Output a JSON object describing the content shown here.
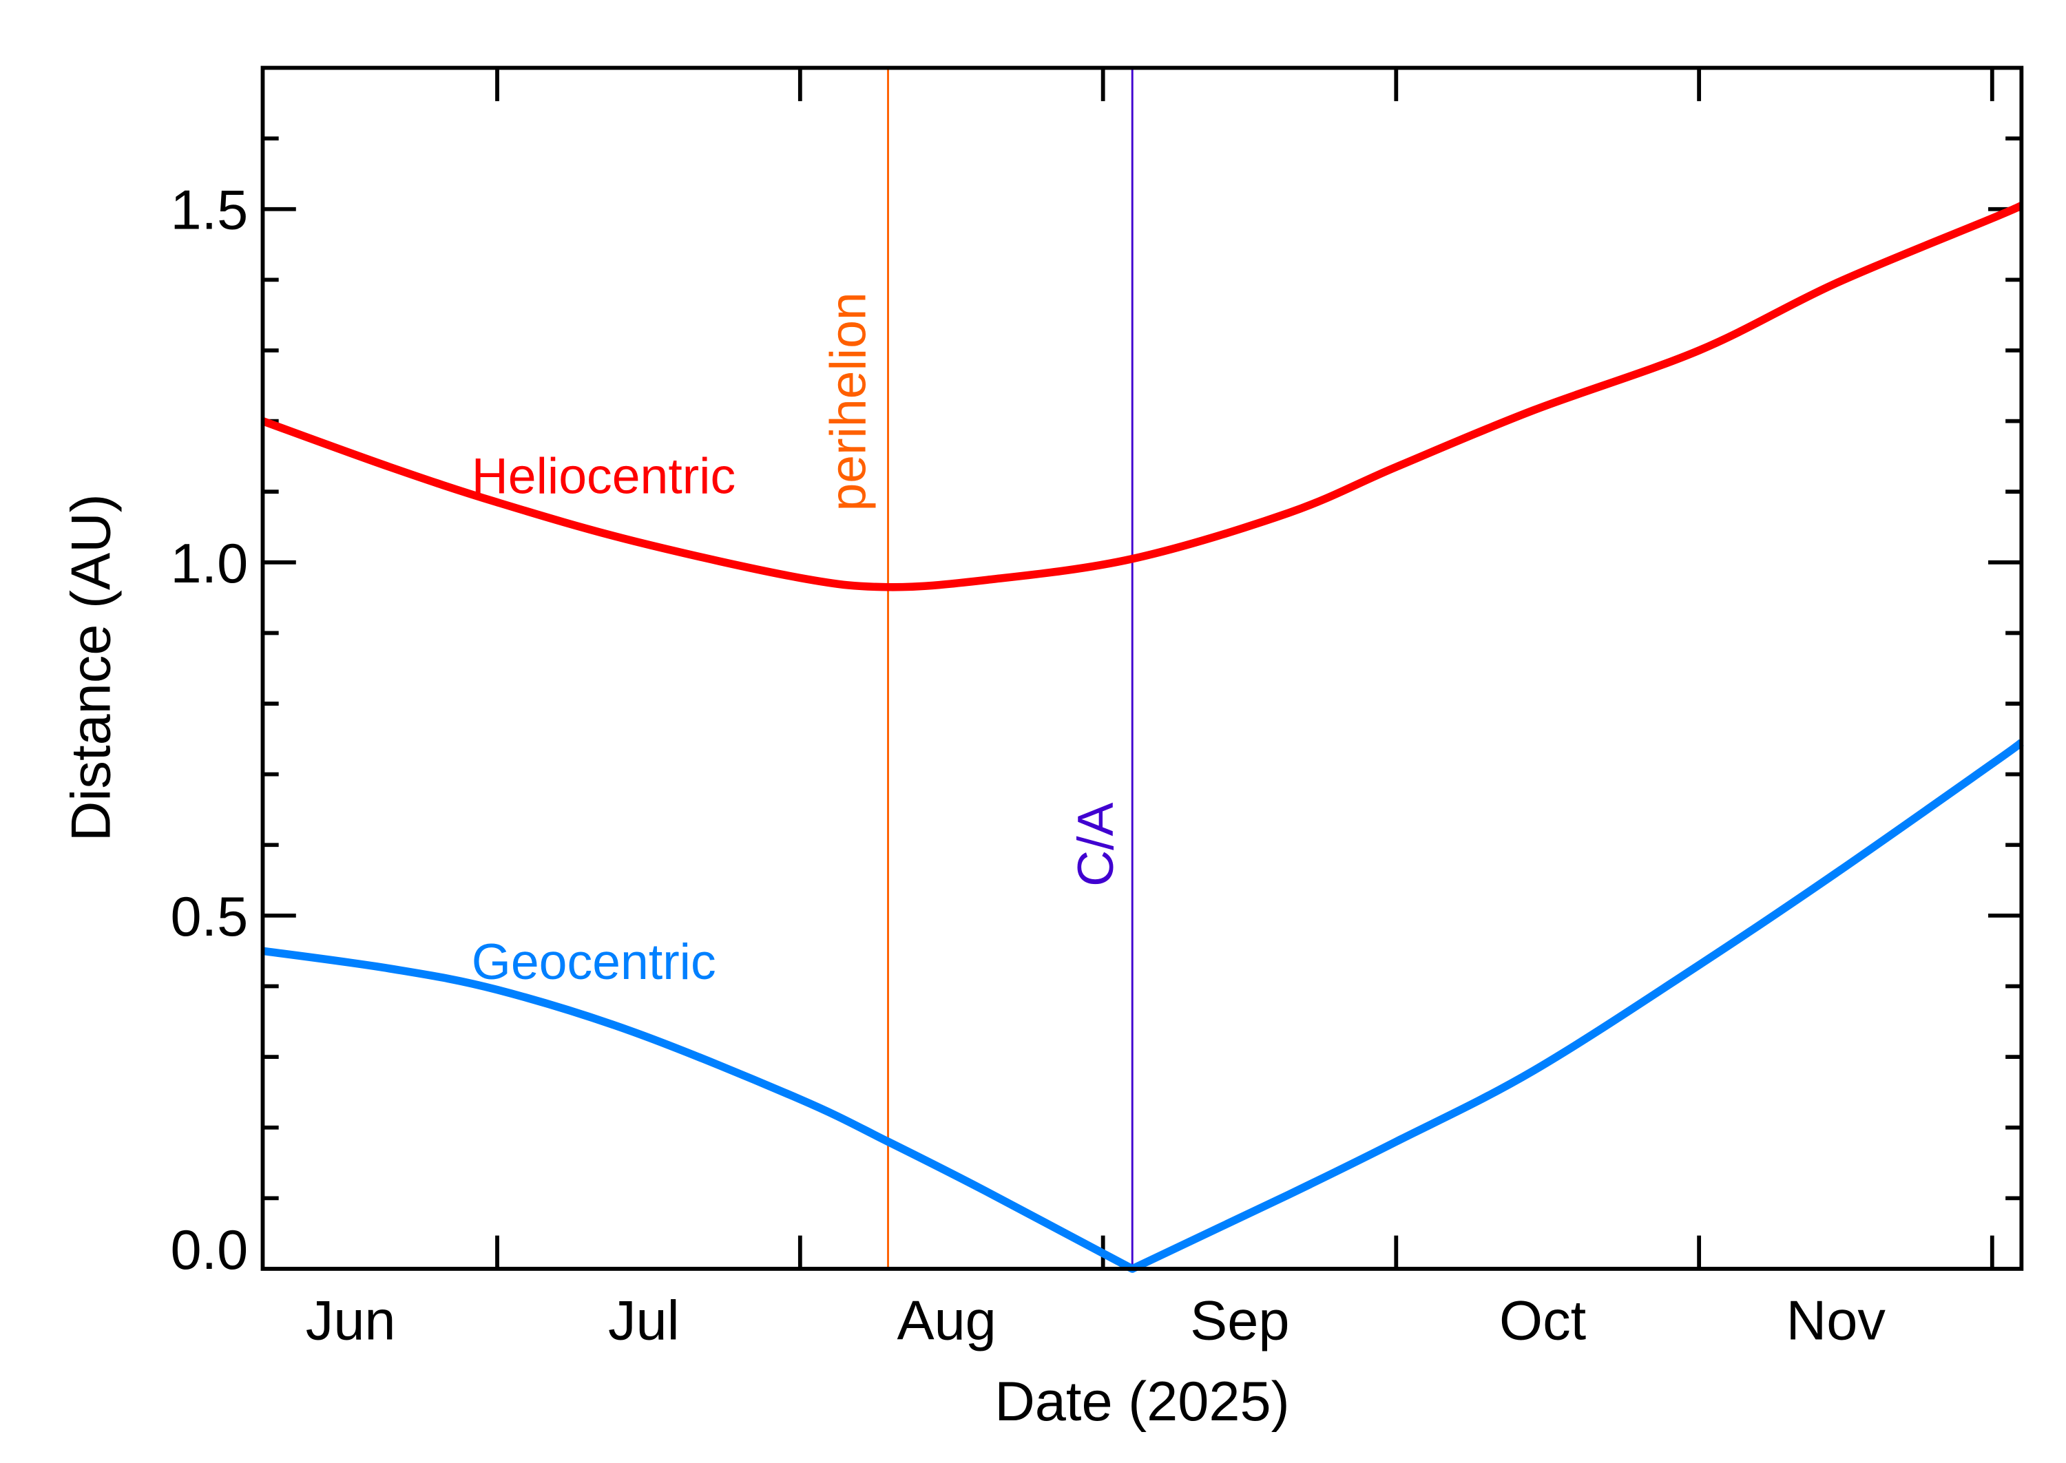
{
  "chart_data": {
    "type": "line",
    "title": "",
    "xlabel": "Date (2025)",
    "ylabel": "Distance (AU)",
    "xlim": [
      "2025-06-07",
      "2025-12-04"
    ],
    "ylim": [
      0,
      1.7
    ],
    "x_tick_labels": [
      "Jun",
      "Jul",
      "Aug",
      "Sep",
      "Oct",
      "Nov"
    ],
    "y_tick_labels": [
      "0.0",
      "0.5",
      "1.0",
      "1.5"
    ],
    "grid": false,
    "series": [
      {
        "name": "Heliocentric",
        "color": "#ff0000",
        "x": [
          "2025-06-07",
          "2025-06-20",
          "2025-07-01",
          "2025-07-15",
          "2025-08-01",
          "2025-08-10",
          "2025-08-20",
          "2025-09-04",
          "2025-09-20",
          "2025-10-01",
          "2025-10-15",
          "2025-11-01",
          "2025-11-15",
          "2025-12-01",
          "2025-12-04"
        ],
        "y": [
          1.2,
          1.135,
          1.085,
          1.03,
          0.978,
          0.965,
          0.975,
          1.005,
          1.07,
          1.135,
          1.215,
          1.3,
          1.395,
          1.487,
          1.505
        ]
      },
      {
        "name": "Geocentric",
        "color": "#0080ff",
        "x": [
          "2025-06-07",
          "2025-06-20",
          "2025-07-01",
          "2025-07-15",
          "2025-08-01",
          "2025-08-10",
          "2025-08-20",
          "2025-09-04",
          "2025-09-20",
          "2025-10-01",
          "2025-10-15",
          "2025-11-01",
          "2025-11-15",
          "2025-12-01",
          "2025-12-04"
        ],
        "y": [
          0.45,
          0.425,
          0.395,
          0.335,
          0.24,
          0.18,
          0.11,
          0.0,
          0.105,
          0.18,
          0.28,
          0.43,
          0.56,
          0.715,
          0.745
        ]
      }
    ],
    "markers": [
      {
        "label": "perihelion",
        "date": "2025-08-10",
        "color": "#ff6000"
      },
      {
        "label": "C/A",
        "date": "2025-09-04",
        "color": "#4000d0"
      }
    ]
  }
}
